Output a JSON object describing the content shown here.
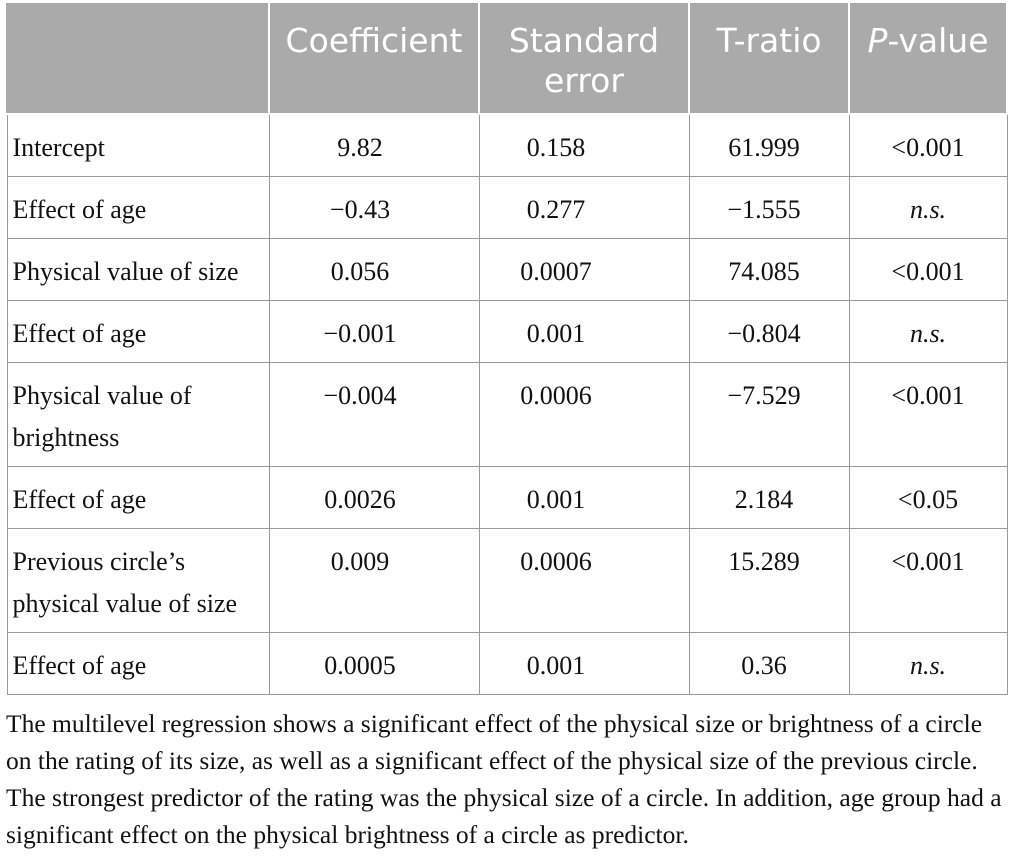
{
  "table": {
    "headers": [
      "",
      "Coefficient",
      "Standard error",
      "T-ratio",
      "P-value"
    ],
    "header_p_italic": "P",
    "header_p_rest": "-value",
    "rows": [
      {
        "label": "Intercept",
        "coefficient": "9.82",
        "std_error": "0.158",
        "t_ratio": "61.999",
        "p_value": "<0.001",
        "p_italic": false
      },
      {
        "label": "Effect of age",
        "coefficient": "−0.43",
        "std_error": "0.277",
        "t_ratio": "−1.555",
        "p_value": "n.s.",
        "p_italic": true
      },
      {
        "label": "Physical value of size",
        "coefficient": "0.056",
        "std_error": "0.0007",
        "t_ratio": "74.085",
        "p_value": "<0.001",
        "p_italic": false
      },
      {
        "label": "Effect of age",
        "coefficient": "−0.001",
        "std_error": "0.001",
        "t_ratio": "−0.804",
        "p_value": "n.s.",
        "p_italic": true
      },
      {
        "label": "Physical value of brightness",
        "coefficient": "−0.004",
        "std_error": "0.0006",
        "t_ratio": "−7.529",
        "p_value": "<0.001",
        "p_italic": false
      },
      {
        "label": "Effect of age",
        "coefficient": "0.0026",
        "std_error": "0.001",
        "t_ratio": "2.184",
        "p_value": "<0.05",
        "p_italic": false
      },
      {
        "label": "Previous circle’s physical value of size",
        "coefficient": "0.009",
        "std_error": "0.0006",
        "t_ratio": "15.289",
        "p_value": "<0.001",
        "p_italic": false
      },
      {
        "label": "Effect of age",
        "coefficient": "0.0005",
        "std_error": "0.001",
        "t_ratio": "0.36",
        "p_value": "n.s.",
        "p_italic": true
      }
    ]
  },
  "note": "The multilevel regression shows a significant effect of the physical size or brightness of a circle on the rating of its size, as well as a significant effect of the physical size of the previous circle. The strongest predictor of the rating was the physical size of a circle. In addition, age group had a significant effect on the physical brightness of a circle as predictor.",
  "colors": {
    "header_bg": "#aaaaaa",
    "header_text": "#ffffff",
    "border": "#9a9a9a",
    "text": "#111111"
  }
}
